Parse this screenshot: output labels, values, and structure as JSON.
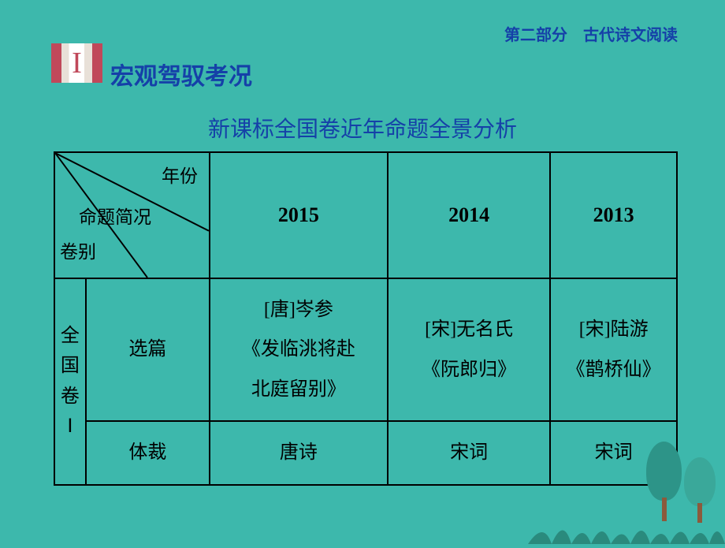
{
  "header": "第二部分　古代诗文阅读",
  "roman": "I",
  "section_title": "宏观驾驭考况",
  "subtitle": "新课标全国卷近年命题全景分析",
  "diag": {
    "top": "年份",
    "mid": "命题简况",
    "bot": "卷别"
  },
  "years": [
    "2015",
    "2014",
    "2013"
  ],
  "row_label_vert": "全国卷Ⅰ",
  "row1": {
    "label": "选篇",
    "c2015": "[唐]岑参\n《发临洮将赴\n北庭留别》",
    "c2014": "[宋]无名氏\n《阮郎归》",
    "c2013": "[宋]陆游\n《鹊桥仙》"
  },
  "row2": {
    "label": "体裁",
    "c2015": "唐诗",
    "c2014": "宋词",
    "c2013": "宋词"
  },
  "colors": {
    "bg": "#3db8ac",
    "header_text": "#1540a8",
    "table_border": "#000000",
    "tree_dark": "#2d9488",
    "tree_light": "#3aa89a",
    "trunk": "#8b5a3c",
    "grass": "#2a8a7d"
  }
}
